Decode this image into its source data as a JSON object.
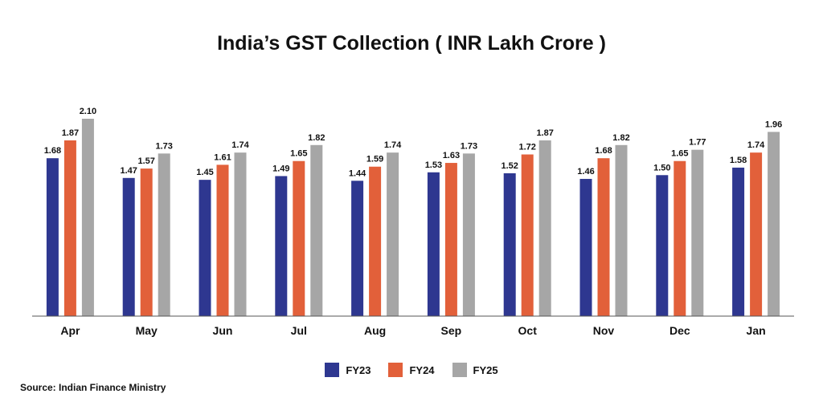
{
  "colors": {
    "FY23": "#2e3790",
    "FY24": "#e2603a",
    "FY25": "#a6a6a6",
    "axis": "#555555"
  },
  "chart_data": {
    "type": "bar",
    "title": "India’s GST Collection ( INR Lakh Crore )",
    "xlabel": "",
    "ylabel": "",
    "ylim": [
      0,
      2.1
    ],
    "grid": false,
    "legend_position": "bottom-center",
    "categories": [
      "Apr",
      "May",
      "Jun",
      "Jul",
      "Aug",
      "Sep",
      "Oct",
      "Nov",
      "Dec",
      "Jan"
    ],
    "series": [
      {
        "name": "FY23",
        "values": [
          1.68,
          1.47,
          1.45,
          1.49,
          1.44,
          1.53,
          1.52,
          1.46,
          1.5,
          1.58
        ]
      },
      {
        "name": "FY24",
        "values": [
          1.87,
          1.57,
          1.61,
          1.65,
          1.59,
          1.63,
          1.72,
          1.68,
          1.65,
          1.74
        ]
      },
      {
        "name": "FY25",
        "values": [
          2.1,
          1.73,
          1.74,
          1.82,
          1.74,
          1.73,
          1.87,
          1.82,
          1.77,
          1.96
        ]
      }
    ]
  },
  "source": "Source: Indian Finance Ministry"
}
